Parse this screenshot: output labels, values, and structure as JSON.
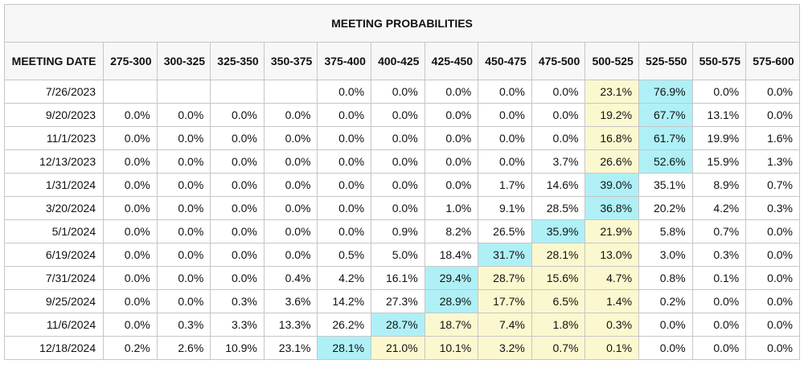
{
  "title": "MEETING PROBABILITIES",
  "date_header": "MEETING DATE",
  "columns": [
    "275-300",
    "300-325",
    "325-350",
    "350-375",
    "375-400",
    "400-425",
    "425-450",
    "450-475",
    "475-500",
    "500-525",
    "525-550",
    "550-575",
    "575-600"
  ],
  "colors": {
    "highlight_max": "#aef0f6",
    "highlight_other": "#fbf8cf",
    "header_bg": "#f7f7f7",
    "border": "#c6c6c6"
  },
  "rows": [
    {
      "date": "7/26/2023",
      "values": [
        "",
        "",
        "",
        "",
        "0.0%",
        "0.0%",
        "0.0%",
        "0.0%",
        "0.0%",
        "23.1%",
        "76.9%",
        "0.0%",
        "0.0%"
      ],
      "max_index": 10,
      "secondary": [
        9
      ]
    },
    {
      "date": "9/20/2023",
      "values": [
        "0.0%",
        "0.0%",
        "0.0%",
        "0.0%",
        "0.0%",
        "0.0%",
        "0.0%",
        "0.0%",
        "0.0%",
        "19.2%",
        "67.7%",
        "13.1%",
        "0.0%"
      ],
      "max_index": 10,
      "secondary": [
        9
      ]
    },
    {
      "date": "11/1/2023",
      "values": [
        "0.0%",
        "0.0%",
        "0.0%",
        "0.0%",
        "0.0%",
        "0.0%",
        "0.0%",
        "0.0%",
        "0.0%",
        "16.8%",
        "61.7%",
        "19.9%",
        "1.6%"
      ],
      "max_index": 10,
      "secondary": [
        9
      ]
    },
    {
      "date": "12/13/2023",
      "values": [
        "0.0%",
        "0.0%",
        "0.0%",
        "0.0%",
        "0.0%",
        "0.0%",
        "0.0%",
        "0.0%",
        "3.7%",
        "26.6%",
        "52.6%",
        "15.9%",
        "1.3%"
      ],
      "max_index": 10,
      "secondary": [
        9
      ]
    },
    {
      "date": "1/31/2024",
      "values": [
        "0.0%",
        "0.0%",
        "0.0%",
        "0.0%",
        "0.0%",
        "0.0%",
        "0.0%",
        "1.7%",
        "14.6%",
        "39.0%",
        "35.1%",
        "8.9%",
        "0.7%"
      ],
      "max_index": 9,
      "secondary": []
    },
    {
      "date": "3/20/2024",
      "values": [
        "0.0%",
        "0.0%",
        "0.0%",
        "0.0%",
        "0.0%",
        "0.0%",
        "1.0%",
        "9.1%",
        "28.5%",
        "36.8%",
        "20.2%",
        "4.2%",
        "0.3%"
      ],
      "max_index": 9,
      "secondary": []
    },
    {
      "date": "5/1/2024",
      "values": [
        "0.0%",
        "0.0%",
        "0.0%",
        "0.0%",
        "0.0%",
        "0.9%",
        "8.2%",
        "26.5%",
        "35.9%",
        "21.9%",
        "5.8%",
        "0.7%",
        "0.0%"
      ],
      "max_index": 8,
      "secondary": [
        9
      ]
    },
    {
      "date": "6/19/2024",
      "values": [
        "0.0%",
        "0.0%",
        "0.0%",
        "0.0%",
        "0.5%",
        "5.0%",
        "18.4%",
        "31.7%",
        "28.1%",
        "13.0%",
        "3.0%",
        "0.3%",
        "0.0%"
      ],
      "max_index": 7,
      "secondary": [
        8,
        9
      ]
    },
    {
      "date": "7/31/2024",
      "values": [
        "0.0%",
        "0.0%",
        "0.0%",
        "0.4%",
        "4.2%",
        "16.1%",
        "29.4%",
        "28.7%",
        "15.6%",
        "4.7%",
        "0.8%",
        "0.1%",
        "0.0%"
      ],
      "max_index": 6,
      "secondary": [
        7,
        8,
        9
      ]
    },
    {
      "date": "9/25/2024",
      "values": [
        "0.0%",
        "0.0%",
        "0.3%",
        "3.6%",
        "14.2%",
        "27.3%",
        "28.9%",
        "17.7%",
        "6.5%",
        "1.4%",
        "0.2%",
        "0.0%",
        "0.0%"
      ],
      "max_index": 6,
      "secondary": [
        7,
        8,
        9
      ]
    },
    {
      "date": "11/6/2024",
      "values": [
        "0.0%",
        "0.3%",
        "3.3%",
        "13.3%",
        "26.2%",
        "28.7%",
        "18.7%",
        "7.4%",
        "1.8%",
        "0.3%",
        "0.0%",
        "0.0%",
        "0.0%"
      ],
      "max_index": 5,
      "secondary": [
        6,
        7,
        8,
        9
      ]
    },
    {
      "date": "12/18/2024",
      "values": [
        "0.2%",
        "2.6%",
        "10.9%",
        "23.1%",
        "28.1%",
        "21.0%",
        "10.1%",
        "3.2%",
        "0.7%",
        "0.1%",
        "0.0%",
        "0.0%",
        "0.0%"
      ],
      "max_index": 4,
      "secondary": [
        5,
        6,
        7,
        8,
        9
      ]
    }
  ]
}
